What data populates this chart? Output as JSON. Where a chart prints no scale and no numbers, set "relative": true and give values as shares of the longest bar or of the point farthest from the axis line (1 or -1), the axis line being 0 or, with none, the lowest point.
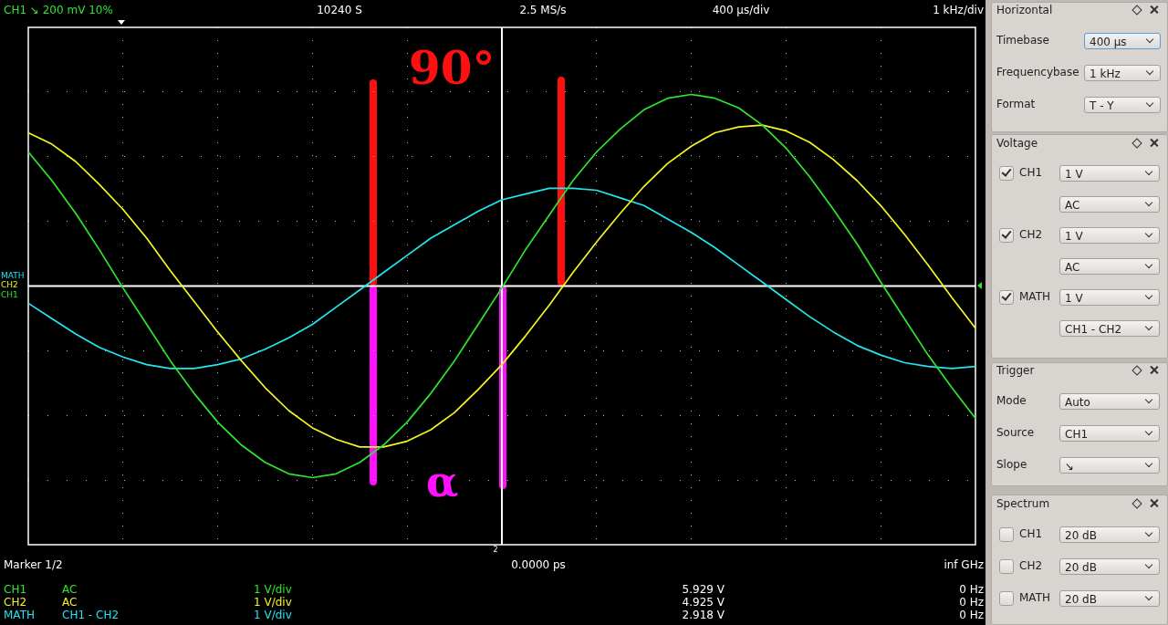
{
  "chart_data": [
    {
      "type": "line",
      "relative": true,
      "grid": true,
      "categories": [
        null,
        null,
        null,
        null,
        null,
        null,
        null,
        null,
        null,
        null,
        null,
        null,
        null,
        null,
        null,
        null,
        null,
        null,
        null,
        null,
        null,
        null,
        null,
        null,
        null,
        null,
        null,
        null,
        null,
        null,
        null,
        null,
        null,
        null,
        null,
        null,
        null,
        null,
        null,
        null,
        null
      ],
      "series": [
        {
          "name": "CH1",
          "color": "#2ee62e",
          "values": [
            0.7,
            0.55,
            0.38,
            0.19,
            -0.01,
            -0.2,
            -0.39,
            -0.56,
            -0.71,
            -0.83,
            -0.92,
            -0.98,
            -1.0,
            -0.98,
            -0.92,
            -0.83,
            -0.71,
            -0.56,
            -0.39,
            -0.2,
            -0.01,
            0.19,
            0.37,
            0.55,
            0.7,
            0.82,
            0.92,
            0.98,
            1.0,
            0.98,
            0.93,
            0.84,
            0.72,
            0.57,
            0.4,
            0.22,
            0.02,
            -0.17,
            -0.36,
            -0.53,
            -0.69
          ]
        },
        {
          "name": "CH2",
          "color": "#f5f522",
          "values": [
            0.8,
            0.74,
            0.65,
            0.53,
            0.4,
            0.25,
            0.08,
            -0.08,
            -0.24,
            -0.39,
            -0.53,
            -0.65,
            -0.74,
            -0.8,
            -0.84,
            -0.84,
            -0.81,
            -0.75,
            -0.66,
            -0.54,
            -0.41,
            -0.26,
            -0.1,
            0.07,
            0.23,
            0.38,
            0.52,
            0.64,
            0.73,
            0.8,
            0.83,
            0.84,
            0.81,
            0.75,
            0.66,
            0.55,
            0.42,
            0.27,
            0.11,
            -0.06,
            -0.22
          ]
        },
        {
          "name": "MATH",
          "color": "#22e6f0",
          "values": [
            -0.09,
            -0.17,
            -0.25,
            -0.32,
            -0.37,
            -0.41,
            -0.43,
            -0.43,
            -0.41,
            -0.38,
            -0.33,
            -0.27,
            -0.2,
            -0.11,
            -0.02,
            0.07,
            0.16,
            0.25,
            0.32,
            0.39,
            0.45,
            0.48,
            0.51,
            0.51,
            0.5,
            0.46,
            0.42,
            0.35,
            0.28,
            0.2,
            0.11,
            0.02,
            -0.07,
            -0.16,
            -0.24,
            -0.31,
            -0.36,
            -0.4,
            -0.42,
            -0.43,
            -0.42
          ]
        }
      ],
      "annotations": [
        "CH1 ↘ 200 mV 10%",
        "10240 S",
        "2.5 MS/s",
        "400 µs/div",
        "1 kHz/div",
        "90°",
        "α",
        "Marker 1/2",
        "0.0000 ps",
        "inf GHz",
        "AC",
        "AC",
        "CH1 - CH2",
        "1 V/div",
        "1 V/div",
        "1 V/div",
        "5.929 V",
        "4.925 V",
        "2.918 V",
        "0 Hz",
        "0 Hz",
        "0 Hz",
        "2"
      ]
    },
    {
      "type": "other",
      "annotations": [
        "Horizontal",
        "Timebase",
        "400 µs",
        "Frequencybase",
        "1 kHz",
        "Format",
        "T - Y",
        "Voltage",
        "CH1",
        "1 V",
        "AC",
        "CH2",
        "1 V",
        "AC",
        "MATH",
        "1 V",
        "CH1 - CH2",
        "Trigger",
        "Mode",
        "Auto",
        "Source",
        "CH1",
        "Slope",
        "↘",
        "Spectrum",
        "CH1",
        "20 dB",
        "CH2",
        "20 dB",
        "MATH",
        "20 dB"
      ]
    }
  ]
}
